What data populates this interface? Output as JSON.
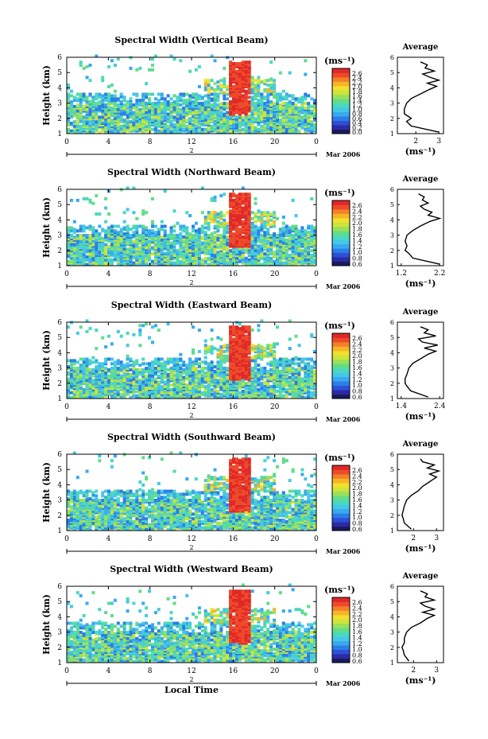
{
  "chart_data": [
    {
      "type": "heatmap",
      "title": "Spectral Width (Vertical Beam)",
      "ylabel": "Height (km)",
      "x_ticks": [
        "0",
        "4",
        "8",
        "12",
        "16",
        "20",
        "0"
      ],
      "y_ticks": [
        "1",
        "2",
        "3",
        "4",
        "5",
        "6"
      ],
      "xlim": [
        0,
        24
      ],
      "ylim": [
        1,
        6
      ],
      "date_day": "2",
      "date_label": "Mar 2006",
      "colorbar": {
        "unit": "(ms⁻¹)",
        "ticks": [
          "2.6",
          "2.4",
          "2.2",
          "2.0",
          "1.8",
          "1.6",
          "1.4",
          "1.2",
          "1.0",
          "0.8",
          "0.6",
          "0.4",
          "0.2",
          "0.0"
        ]
      },
      "profile": {
        "title": "Average",
        "xlabel": "(ms⁻¹)",
        "x_ticks": [
          "2",
          "3"
        ],
        "xlim": [
          1.2,
          3.2
        ],
        "heights": [
          1.1,
          1.5,
          1.8,
          2.0,
          2.3,
          2.6,
          3.0,
          3.3,
          3.6,
          3.9,
          4.1,
          4.3,
          4.5,
          4.7,
          4.9,
          5.1,
          5.3,
          5.5,
          5.7
        ],
        "values": [
          3.0,
          1.8,
          1.6,
          1.8,
          1.5,
          1.5,
          1.6,
          1.8,
          2.2,
          2.6,
          2.9,
          2.5,
          3.0,
          2.6,
          2.3,
          2.8,
          2.4,
          2.5,
          2.2
        ]
      },
      "title_label": "Spectral Width (Vertical Beam)"
    },
    {
      "type": "heatmap",
      "title": "Spectral Width (Northward Beam)",
      "ylabel": "Height (km)",
      "x_ticks": [
        "0",
        "4",
        "8",
        "12",
        "16",
        "20",
        "0"
      ],
      "y_ticks": [
        "1",
        "2",
        "3",
        "4",
        "5",
        "6"
      ],
      "xlim": [
        0,
        24
      ],
      "ylim": [
        1,
        6
      ],
      "date_day": "2",
      "date_label": "Mar 2006",
      "colorbar": {
        "unit": "(ms⁻¹)",
        "ticks": [
          "2.6",
          "2.4",
          "2.2",
          "2.0",
          "1.8",
          "1.6",
          "1.4",
          "1.2",
          "1.0",
          "0.8",
          "0.6"
        ]
      },
      "profile": {
        "title": "Average",
        "xlabel": "(ms⁻¹)",
        "x_ticks": [
          "1.2",
          "2.2"
        ],
        "xlim": [
          1.1,
          2.3
        ],
        "heights": [
          1.1,
          1.5,
          1.8,
          2.0,
          2.3,
          2.6,
          3.0,
          3.3,
          3.6,
          3.9,
          4.1,
          4.3,
          4.5,
          4.7,
          4.9,
          5.1,
          5.3,
          5.5,
          5.7
        ],
        "values": [
          2.2,
          1.5,
          1.4,
          1.3,
          1.35,
          1.3,
          1.35,
          1.5,
          1.7,
          1.95,
          2.2,
          1.9,
          2.0,
          1.8,
          1.7,
          1.9,
          1.75,
          1.8,
          1.65
        ]
      }
    },
    {
      "type": "heatmap",
      "title": "Spectral Width (Eastward Beam)",
      "ylabel": "Height (km)",
      "x_ticks": [
        "0",
        "4",
        "8",
        "12",
        "16",
        "20",
        "0"
      ],
      "y_ticks": [
        "1",
        "2",
        "3",
        "4",
        "5",
        "6"
      ],
      "xlim": [
        0,
        24
      ],
      "ylim": [
        1,
        6
      ],
      "date_day": "2",
      "date_label": "Mar 2006",
      "colorbar": {
        "unit": "(ms⁻¹)",
        "ticks": [
          "2.6",
          "2.4",
          "2.2",
          "2.0",
          "1.8",
          "1.6",
          "1.4",
          "1.2",
          "1.0",
          "0.8",
          "0.6"
        ]
      },
      "profile": {
        "title": "Average",
        "xlabel": "(ms⁻¹)",
        "x_ticks": [
          "1.4",
          "2.4"
        ],
        "xlim": [
          1.3,
          2.5
        ],
        "heights": [
          1.1,
          1.5,
          1.8,
          2.0,
          2.3,
          2.6,
          3.0,
          3.3,
          3.6,
          3.9,
          4.1,
          4.3,
          4.5,
          4.7,
          4.9,
          5.1,
          5.3,
          5.5,
          5.7
        ],
        "values": [
          2.1,
          1.65,
          1.55,
          1.5,
          1.5,
          1.55,
          1.6,
          1.7,
          1.9,
          2.1,
          2.3,
          2.0,
          2.35,
          1.95,
          1.85,
          2.3,
          2.0,
          2.1,
          1.9
        ]
      }
    },
    {
      "type": "heatmap",
      "title": "Spectral Width (Southward Beam)",
      "ylabel": "Height (km)",
      "x_ticks": [
        "0",
        "4",
        "8",
        "12",
        "16",
        "20",
        "0"
      ],
      "y_ticks": [
        "1",
        "2",
        "3",
        "4",
        "5",
        "6"
      ],
      "xlim": [
        0,
        24
      ],
      "ylim": [
        1,
        6
      ],
      "date_day": "2",
      "date_label": "Mar 2006",
      "colorbar": {
        "unit": "(ms⁻¹)",
        "ticks": [
          "2.6",
          "2.4",
          "2.2",
          "2.0",
          "1.8",
          "1.6",
          "1.4",
          "1.2",
          "1.0",
          "0.8",
          "0.6"
        ]
      },
      "profile": {
        "title": "Average",
        "xlabel": "(ms⁻¹)",
        "x_ticks": [
          "2",
          "3"
        ],
        "xlim": [
          1.3,
          3.3
        ],
        "heights": [
          1.1,
          1.5,
          1.8,
          2.0,
          2.3,
          2.6,
          3.0,
          3.3,
          3.6,
          3.9,
          4.1,
          4.3,
          4.5,
          4.7,
          4.9,
          5.1,
          5.3,
          5.5,
          5.7
        ],
        "values": [
          1.9,
          1.6,
          1.55,
          1.5,
          1.55,
          1.6,
          1.7,
          1.9,
          2.2,
          2.4,
          2.6,
          2.8,
          3.0,
          2.7,
          3.1,
          2.6,
          2.9,
          2.4,
          2.3
        ]
      }
    },
    {
      "type": "heatmap",
      "title": "Spectral Width (Westward Beam)",
      "ylabel": "Height (km)",
      "xlabel": "Local Time",
      "x_ticks": [
        "0",
        "4",
        "8",
        "12",
        "16",
        "20",
        "0"
      ],
      "y_ticks": [
        "1",
        "2",
        "3",
        "4",
        "5",
        "6"
      ],
      "xlim": [
        0,
        24
      ],
      "ylim": [
        1,
        6
      ],
      "date_day": "2",
      "date_label": "Mar 2006",
      "colorbar": {
        "unit": "(ms⁻¹)",
        "ticks": [
          "2.6",
          "2.4",
          "2.2",
          "2.0",
          "1.8",
          "1.6",
          "1.4",
          "1.2",
          "1.0",
          "0.8",
          "0.6"
        ]
      },
      "profile": {
        "title": "Average",
        "xlabel": "(ms⁻¹)",
        "x_ticks": [
          "2",
          "3"
        ],
        "xlim": [
          1.3,
          3.3
        ],
        "heights": [
          1.1,
          1.5,
          1.8,
          2.0,
          2.3,
          2.6,
          3.0,
          3.3,
          3.6,
          3.9,
          4.1,
          4.3,
          4.5,
          4.7,
          4.9,
          5.1,
          5.3,
          5.5,
          5.7
        ],
        "values": [
          1.8,
          1.6,
          1.55,
          1.5,
          1.6,
          1.6,
          1.7,
          1.9,
          2.3,
          2.6,
          2.9,
          2.4,
          2.9,
          2.5,
          2.3,
          2.9,
          2.5,
          2.6,
          2.3
        ]
      }
    }
  ],
  "colorscale": [
    "#1a1a5e",
    "#2b2ba6",
    "#2f4fd8",
    "#2a7fe6",
    "#3aa8f0",
    "#44c8e6",
    "#4ad8c0",
    "#60dd8a",
    "#9ae05a",
    "#cce43c",
    "#f2e02c",
    "#f6b428",
    "#f4802a",
    "#ee4a2a",
    "#e02828"
  ]
}
